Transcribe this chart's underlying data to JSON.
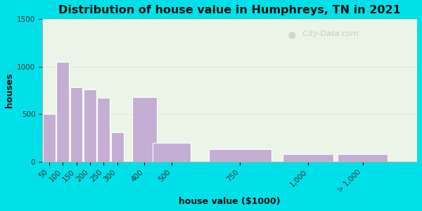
{
  "title": "Distribution of house value in Humphreys, TN in 2021",
  "xlabel": "house value ($1000)",
  "ylabel": "houses",
  "categories": [
    "50",
    "100",
    "150",
    "200",
    "250",
    "300",
    "400",
    "500",
    "750",
    "1,000",
    "> 1,000"
  ],
  "values": [
    500,
    1050,
    780,
    760,
    670,
    310,
    680,
    200,
    130,
    80,
    80
  ],
  "x_positions": [
    50,
    100,
    150,
    200,
    250,
    300,
    400,
    500,
    750,
    1000,
    1200
  ],
  "bar_widths": [
    50,
    50,
    50,
    50,
    50,
    50,
    100,
    150,
    250,
    200,
    200
  ],
  "bar_color": "#c4aed4",
  "bar_edge_color": "#ffffff",
  "ylim": [
    0,
    1500
  ],
  "yticks": [
    0,
    500,
    1000,
    1500
  ],
  "xlim": [
    25,
    1400
  ],
  "bg_outer": "#00e0e8",
  "bg_plot": "#eaf5e8",
  "title_fontsize": 11.5,
  "label_fontsize": 9,
  "tick_fontsize": 7.5,
  "watermark": "City-Data.com",
  "tick_labels_x": [
    "50",
    "100",
    "150",
    "200",
    "250",
    "300",
    "400",
    "500",
    "750",
    "1,000",
    "> 1,000"
  ],
  "tick_positions_x": [
    50,
    100,
    150,
    200,
    250,
    300,
    400,
    500,
    750,
    1000,
    1200
  ]
}
